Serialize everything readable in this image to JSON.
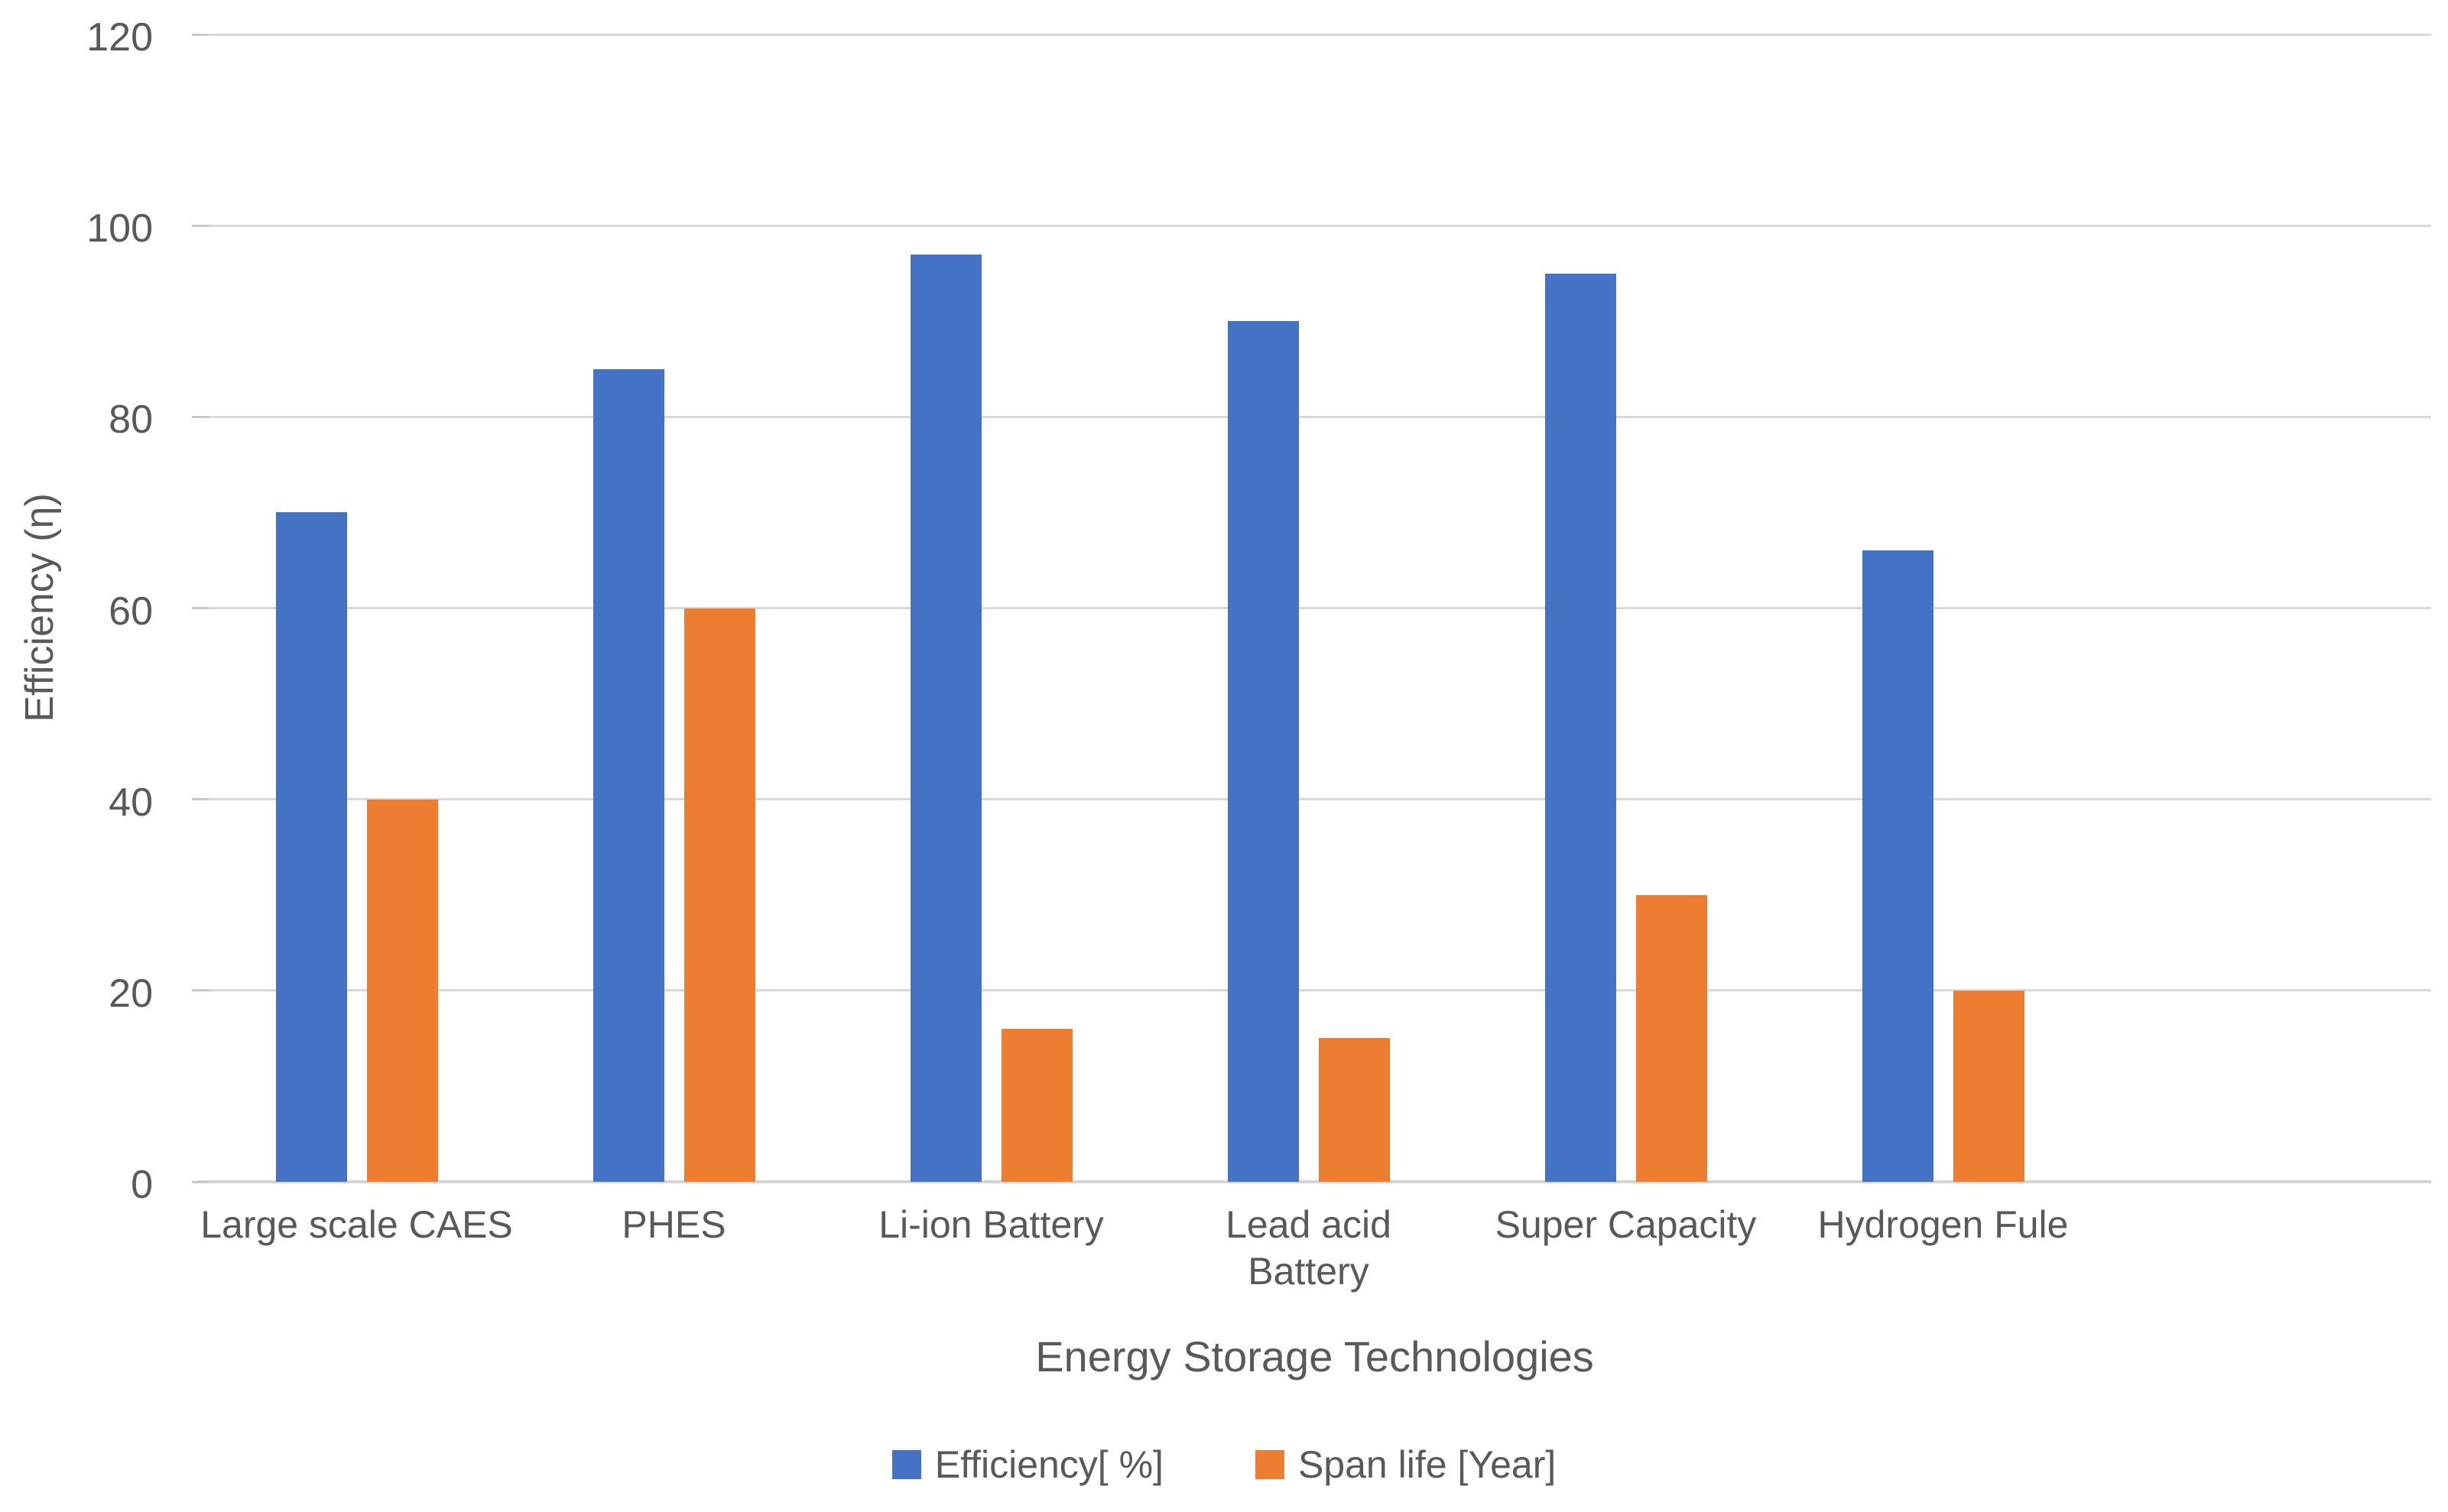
{
  "chart_data": {
    "type": "bar",
    "title": "",
    "categories": [
      "Large scale CAES",
      "PHES",
      "Li-ion Battery",
      "Lead acid\nBattery",
      "Super Capacity",
      "Hydrogen Fule"
    ],
    "series": [
      {
        "name": "Efficiency[ %]",
        "color": "#4472C4",
        "values": [
          70,
          85,
          97,
          90,
          95,
          66
        ]
      },
      {
        "name": "Span life [Year]",
        "color": "#ED7D31",
        "values": [
          40,
          60,
          16,
          15,
          30,
          20
        ]
      }
    ],
    "xlabel": "Energy Storage Technologies",
    "ylabel": "Efficiency (η)",
    "ylim": [
      0,
      120
    ],
    "yticks": [
      0,
      20,
      40,
      60,
      80,
      100,
      120
    ],
    "grid": true,
    "legend_position": "bottom"
  },
  "styles": {
    "bar_blue": "#4472C4",
    "bar_orange": "#ED7D31",
    "gridline_color": "#D9D9D9",
    "zero_line_color": "#D4D4D4",
    "text_color": "#595959",
    "background": "#FFFFFF"
  }
}
